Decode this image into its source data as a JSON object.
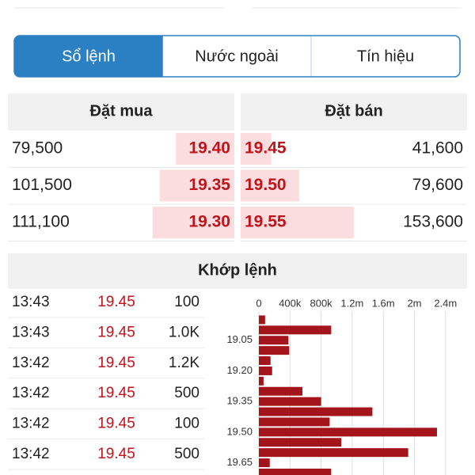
{
  "tabs": [
    "Sổ lệnh",
    "Nước ngoài",
    "Tín hiệu"
  ],
  "order_book": {
    "bid_header": "Đặt mua",
    "ask_header": "Đặt bán",
    "rows": [
      {
        "bid_volume": {
          "value": 79500,
          "label": "79,500"
        },
        "bid_price": "19.40",
        "ask_price": "19.45",
        "ask_volume": {
          "value": 41600,
          "label": "41,600"
        }
      },
      {
        "bid_volume": {
          "value": 101500,
          "label": "101,500"
        },
        "bid_price": "19.35",
        "ask_price": "19.50",
        "ask_volume": {
          "value": 79600,
          "label": "79,600"
        }
      },
      {
        "bid_volume": {
          "value": 111100,
          "label": "111,100"
        },
        "bid_price": "19.30",
        "ask_price": "19.55",
        "ask_volume": {
          "value": 153600,
          "label": "153,600"
        }
      }
    ]
  },
  "trades": {
    "title": "Khớp lệnh",
    "rows": [
      [
        "13:43",
        "19.45",
        "100"
      ],
      [
        "13:43",
        "19.45",
        "1.0K"
      ],
      [
        "13:42",
        "19.45",
        "1.2K"
      ],
      [
        "13:42",
        "19.45",
        "500"
      ],
      [
        "13:42",
        "19.45",
        "100"
      ],
      [
        "13:42",
        "19.45",
        "500"
      ]
    ]
  },
  "chart_data": {
    "type": "bar",
    "orientation": "horizontal",
    "categories": [
      null,
      null,
      "19.05",
      null,
      null,
      "19.20",
      null,
      null,
      "19.35",
      null,
      null,
      "19.50",
      null,
      null,
      "19.65",
      null
    ],
    "values": [
      80000,
      930000,
      380000,
      390000,
      150000,
      170000,
      60000,
      560000,
      800000,
      1460000,
      910000,
      2290000,
      1060000,
      1920000,
      140000,
      930000
    ],
    "color": "#a3141b",
    "xlim": [
      0,
      2500000
    ],
    "xticks": [
      0,
      {
        "value": 400000,
        "label": "400k"
      },
      {
        "value": 800000,
        "label": "800k"
      },
      {
        "value": 1200000,
        "label": "1.2m"
      },
      {
        "value": 1600000,
        "label": "1.6m"
      },
      {
        "value": 2000000,
        "label": "2m"
      },
      {
        "value": 2400000,
        "label": "2.4m"
      }
    ],
    "grid": true
  }
}
